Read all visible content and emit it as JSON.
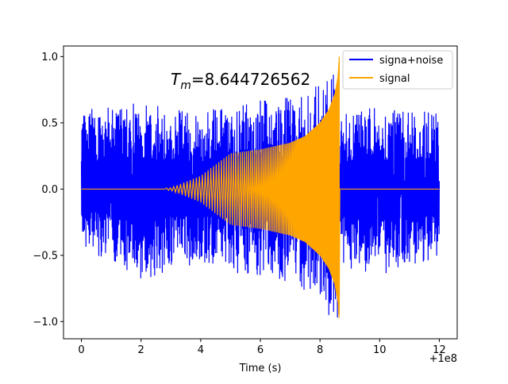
{
  "chart_data": {
    "type": "line",
    "title": "",
    "xlabel": "Time (s)",
    "ylabel": "",
    "x_offset_label": "+1e8",
    "xlim": [
      -0.6,
      12.6
    ],
    "ylim": [
      -1.13,
      1.08
    ],
    "xticks": [
      0,
      2,
      4,
      6,
      8,
      10,
      12
    ],
    "xtick_labels": [
      "0",
      "2",
      "4",
      "6",
      "8",
      "10",
      "12"
    ],
    "yticks": [
      -1.0,
      -0.5,
      0.0,
      0.5,
      1.0
    ],
    "ytick_labels": [
      "−1.0",
      "−0.5",
      "0.0",
      "0.5",
      "1.0"
    ],
    "annotation": {
      "prefix": "T",
      "subscript": "m",
      "text": "=8.644726562",
      "x": 3.0,
      "y": 0.8
    },
    "legend_position": "top-right",
    "series": [
      {
        "name": "signa+noise",
        "color": "#0000ff",
        "description": "noise band, roughly uniform over t in [0, 12]",
        "upper_envelope": {
          "x": [
            0,
            1,
            2,
            3,
            4,
            5,
            6,
            7,
            8,
            8.3,
            8.6,
            8.65,
            9,
            10,
            11,
            12
          ],
          "y": [
            0.6,
            0.62,
            0.66,
            0.62,
            0.6,
            0.62,
            0.68,
            0.7,
            0.8,
            0.85,
            0.95,
            0.55,
            0.6,
            0.62,
            0.6,
            0.6
          ]
        },
        "lower_envelope": {
          "x": [
            0,
            1,
            2,
            3,
            4,
            5,
            6,
            7,
            8,
            8.3,
            8.6,
            8.65,
            9,
            10,
            11,
            12
          ],
          "y": [
            -0.45,
            -0.55,
            -0.72,
            -0.6,
            -0.58,
            -0.62,
            -0.68,
            -0.7,
            -0.85,
            -1.05,
            -0.98,
            -0.55,
            -0.6,
            -0.65,
            -0.58,
            -0.55
          ]
        }
      },
      {
        "name": "signal",
        "color": "#ffa500",
        "description": "chirp that grows and ends at merger time",
        "merger_time": 8.6447,
        "envelope": {
          "x": [
            0,
            2,
            3,
            4,
            5,
            6,
            7,
            7.5,
            8,
            8.3,
            8.5,
            8.6,
            8.6447
          ],
          "y": [
            0,
            0,
            0.01,
            0.1,
            0.27,
            0.3,
            0.35,
            0.4,
            0.5,
            0.6,
            0.72,
            0.85,
            1.0
          ]
        },
        "end_min": -0.95
      }
    ]
  }
}
